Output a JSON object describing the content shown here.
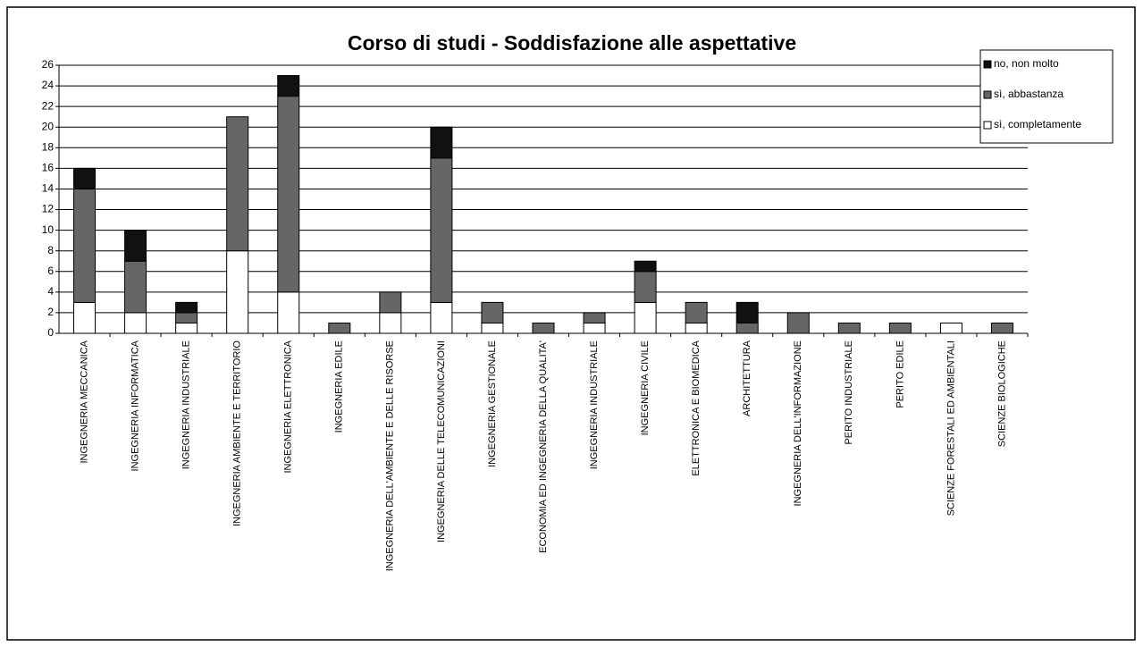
{
  "chart_data": {
    "type": "stacked_bar",
    "title": "Corso di studi - Soddisfazione alle aspettative",
    "categories": [
      "INGEGNERIA MECCANICA",
      "INGEGNERIA INFORMATICA",
      "INGEGNERIA INDUSTRIALE",
      "INGEGNERIA AMBIENTE E TERRITORIO",
      "INGEGNERIA ELETTRONICA",
      "INGEGNERIA EDILE",
      "INGEGNERIA DELL'AMBIENTE E DELLE RISORSE",
      "INGEGNERIA DELLE TELECOMUNICAZIONI",
      "INGEGNERIA GESTIONALE",
      "ECONOMIA ED INGEGNERIA DELLA QUALITA'",
      "INGEGNERIA INDUSTRIALE",
      "INGEGNERIA CIVILE",
      "ELETTRONICA E BIOMEDICA",
      "ARCHITETTURA",
      "INGEGNERIA DELL'INFORMAZIONE",
      "PERITO INDUSTRIALE",
      "PERITO EDILE",
      "SCIENZE FORESTALI ED AMBIENTALI",
      "SCIENZE BIOLOGICHE"
    ],
    "series": [
      {
        "name": "sì, completamente",
        "color": "#ffffff",
        "values": [
          3,
          2,
          1,
          8,
          4,
          0,
          2,
          3,
          1,
          0,
          1,
          3,
          1,
          0,
          0,
          0,
          0,
          1,
          0
        ]
      },
      {
        "name": "sì, abbastanza",
        "color": "#666666",
        "values": [
          11,
          5,
          1,
          13,
          19,
          1,
          2,
          14,
          2,
          1,
          1,
          3,
          2,
          1,
          2,
          1,
          1,
          0,
          1
        ]
      },
      {
        "name": "no, non molto",
        "color": "#111111",
        "values": [
          2,
          3,
          1,
          0,
          2,
          0,
          0,
          3,
          0,
          0,
          0,
          1,
          0,
          2,
          0,
          0,
          0,
          0,
          0
        ]
      }
    ],
    "ylim": [
      0,
      26
    ],
    "yticks": [
      0,
      2,
      4,
      6,
      8,
      10,
      12,
      14,
      16,
      18,
      20,
      22,
      24,
      26
    ],
    "grid": true,
    "legend": "top-right"
  }
}
